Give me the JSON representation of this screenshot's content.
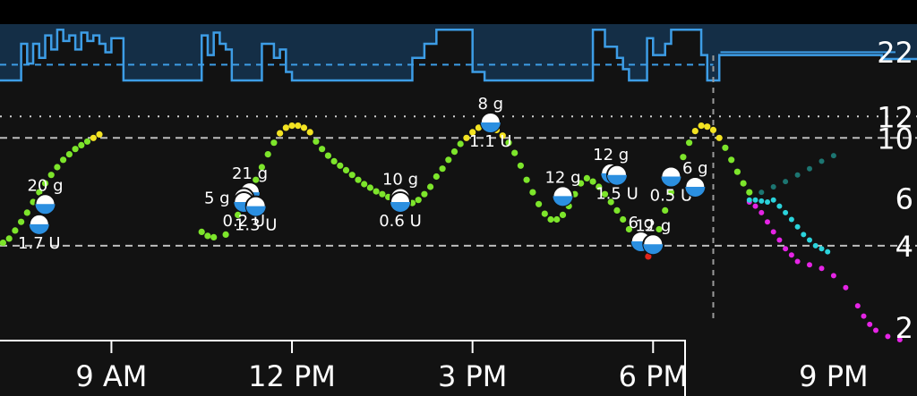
{
  "chart_data": {
    "type": "scatter",
    "title": "",
    "xlabel": "",
    "ylabel": "",
    "x_ticks": [
      "9 AM",
      "12 PM",
      "3 PM",
      "6 PM",
      "9 PM"
    ],
    "x_tick_hours": [
      9,
      12,
      15,
      18,
      21
    ],
    "xlim_hours": [
      7.0,
      22.4
    ],
    "now_hour": 19.0,
    "y_ticks": [
      {
        "label": "2",
        "value": 2
      },
      {
        "label": "4",
        "value": 4
      },
      {
        "label": "6",
        "value": 6
      },
      {
        "label": "10",
        "value": 10
      },
      {
        "label": "12",
        "value": 12
      }
    ],
    "y_scale": "log",
    "ylim": [
      1.8,
      14.0
    ],
    "target_low": 4,
    "target_high": 10,
    "high_dotted": 12,
    "grid": false,
    "colors": {
      "background": "#121212",
      "in_range": "#7de52b",
      "high": "#f3e322",
      "low": "#e0251b",
      "prediction_cob": "#e524e5",
      "prediction_iob": "#2bd3dc",
      "prediction_uam": "#1f8f8a",
      "basal": "#3d9de6",
      "basal_fill": "#15324d",
      "axis": "#ffffff"
    },
    "basal": {
      "scale_label": "22",
      "profile_value": 0.72,
      "steps": [
        [
          7.0,
          0.35
        ],
        [
          7.1,
          1.0
        ],
        [
          7.5,
          0.35
        ],
        [
          7.6,
          0.7
        ],
        [
          7.7,
          0.35
        ],
        [
          7.8,
          0.6
        ],
        [
          7.9,
          0.2
        ],
        [
          8.0,
          0.45
        ],
        [
          8.1,
          0.1
        ],
        [
          8.2,
          0.3
        ],
        [
          8.3,
          0.2
        ],
        [
          8.4,
          0.45
        ],
        [
          8.5,
          0.15
        ],
        [
          8.6,
          0.3
        ],
        [
          8.7,
          0.2
        ],
        [
          8.8,
          0.35
        ],
        [
          8.9,
          0.5
        ],
        [
          9.0,
          0.25
        ],
        [
          9.2,
          1.0
        ],
        [
          10.5,
          0.2
        ],
        [
          10.6,
          0.55
        ],
        [
          10.7,
          0.15
        ],
        [
          10.8,
          0.35
        ],
        [
          10.9,
          0.45
        ],
        [
          11.0,
          1.0
        ],
        [
          11.5,
          0.35
        ],
        [
          11.7,
          0.6
        ],
        [
          11.8,
          0.45
        ],
        [
          11.9,
          0.85
        ],
        [
          12.0,
          1.0
        ],
        [
          14.0,
          0.6
        ],
        [
          14.2,
          0.35
        ],
        [
          14.4,
          0.1
        ],
        [
          14.8,
          0.1
        ],
        [
          15.0,
          0.85
        ],
        [
          15.2,
          1.0
        ],
        [
          17.0,
          0.1
        ],
        [
          17.2,
          0.4
        ],
        [
          17.4,
          0.6
        ],
        [
          17.5,
          0.8
        ],
        [
          17.6,
          1.0
        ],
        [
          17.9,
          0.25
        ],
        [
          18.0,
          0.55
        ],
        [
          18.2,
          0.35
        ],
        [
          18.3,
          0.1
        ],
        [
          18.8,
          0.55
        ],
        [
          18.9,
          1.0
        ],
        [
          19.1,
          0.55
        ],
        [
          21.8,
          0.62
        ],
        [
          22.4,
          0.62
        ]
      ]
    },
    "bg_points": [
      {
        "t": 7.0,
        "v": 4.1
      },
      {
        "t": 7.1,
        "v": 4.0
      },
      {
        "t": 7.2,
        "v": 4.1
      },
      {
        "t": 7.3,
        "v": 4.25
      },
      {
        "t": 7.4,
        "v": 4.55
      },
      {
        "t": 7.5,
        "v": 4.9
      },
      {
        "t": 7.6,
        "v": 5.3
      },
      {
        "t": 7.7,
        "v": 5.8
      },
      {
        "t": 7.8,
        "v": 6.3
      },
      {
        "t": 7.9,
        "v": 6.8
      },
      {
        "t": 8.0,
        "v": 7.3
      },
      {
        "t": 8.1,
        "v": 7.8
      },
      {
        "t": 8.2,
        "v": 8.3
      },
      {
        "t": 8.3,
        "v": 8.7
      },
      {
        "t": 8.4,
        "v": 9.1
      },
      {
        "t": 8.5,
        "v": 9.4
      },
      {
        "t": 8.6,
        "v": 9.7
      },
      {
        "t": 8.7,
        "v": 10.0
      },
      {
        "t": 8.8,
        "v": 10.3
      },
      {
        "t": 10.5,
        "v": 4.5
      },
      {
        "t": 10.6,
        "v": 4.35
      },
      {
        "t": 10.7,
        "v": 4.3
      },
      {
        "t": 10.9,
        "v": 4.4
      },
      {
        "t": 11.1,
        "v": 5.2
      },
      {
        "t": 11.2,
        "v": 5.7
      },
      {
        "t": 11.3,
        "v": 6.3
      },
      {
        "t": 11.4,
        "v": 7.0
      },
      {
        "t": 11.5,
        "v": 7.8
      },
      {
        "t": 11.6,
        "v": 8.7
      },
      {
        "t": 11.7,
        "v": 9.6
      },
      {
        "t": 11.8,
        "v": 10.4
      },
      {
        "t": 11.9,
        "v": 10.9
      },
      {
        "t": 12.0,
        "v": 11.1
      },
      {
        "t": 12.1,
        "v": 11.1
      },
      {
        "t": 12.2,
        "v": 10.9
      },
      {
        "t": 12.3,
        "v": 10.5
      },
      {
        "t": 12.4,
        "v": 9.7
      },
      {
        "t": 12.5,
        "v": 9.1
      },
      {
        "t": 12.6,
        "v": 8.6
      },
      {
        "t": 12.7,
        "v": 8.2
      },
      {
        "t": 12.8,
        "v": 7.9
      },
      {
        "t": 12.9,
        "v": 7.6
      },
      {
        "t": 13.0,
        "v": 7.3
      },
      {
        "t": 13.1,
        "v": 7.0
      },
      {
        "t": 13.2,
        "v": 6.75
      },
      {
        "t": 13.3,
        "v": 6.55
      },
      {
        "t": 13.4,
        "v": 6.35
      },
      {
        "t": 13.5,
        "v": 6.2
      },
      {
        "t": 13.6,
        "v": 6.05
      },
      {
        "t": 13.7,
        "v": 5.9
      },
      {
        "t": 13.8,
        "v": 5.8
      },
      {
        "t": 13.9,
        "v": 5.75
      },
      {
        "t": 14.0,
        "v": 5.75
      },
      {
        "t": 14.1,
        "v": 5.9
      },
      {
        "t": 14.2,
        "v": 6.2
      },
      {
        "t": 14.3,
        "v": 6.6
      },
      {
        "t": 14.4,
        "v": 7.2
      },
      {
        "t": 14.5,
        "v": 7.7
      },
      {
        "t": 14.6,
        "v": 8.3
      },
      {
        "t": 14.7,
        "v": 8.9
      },
      {
        "t": 14.8,
        "v": 9.5
      },
      {
        "t": 14.9,
        "v": 10.0
      },
      {
        "t": 15.0,
        "v": 10.5
      },
      {
        "t": 15.1,
        "v": 10.9
      },
      {
        "t": 15.2,
        "v": 11.1
      },
      {
        "t": 15.3,
        "v": 11.0
      },
      {
        "t": 15.4,
        "v": 10.7
      },
      {
        "t": 15.5,
        "v": 10.2
      },
      {
        "t": 15.6,
        "v": 9.6
      },
      {
        "t": 15.7,
        "v": 8.8
      },
      {
        "t": 15.8,
        "v": 7.9
      },
      {
        "t": 15.9,
        "v": 7.0
      },
      {
        "t": 16.0,
        "v": 6.3
      },
      {
        "t": 16.1,
        "v": 5.7
      },
      {
        "t": 16.2,
        "v": 5.25
      },
      {
        "t": 16.3,
        "v": 5.0
      },
      {
        "t": 16.4,
        "v": 5.0
      },
      {
        "t": 16.5,
        "v": 5.2
      },
      {
        "t": 16.6,
        "v": 5.6
      },
      {
        "t": 16.7,
        "v": 6.2
      },
      {
        "t": 16.8,
        "v": 6.8
      },
      {
        "t": 16.9,
        "v": 7.1
      },
      {
        "t": 17.0,
        "v": 6.9
      },
      {
        "t": 17.1,
        "v": 6.6
      },
      {
        "t": 17.2,
        "v": 6.2
      },
      {
        "t": 17.3,
        "v": 5.8
      },
      {
        "t": 17.4,
        "v": 5.4
      },
      {
        "t": 17.5,
        "v": 5.0
      },
      {
        "t": 17.6,
        "v": 4.6
      },
      {
        "t": 17.7,
        "v": 4.3
      },
      {
        "t": 17.8,
        "v": 4.05
      },
      {
        "t": 17.9,
        "v": 3.9
      },
      {
        "t": 18.0,
        "v": 4.1
      },
      {
        "t": 18.1,
        "v": 4.6
      },
      {
        "t": 18.2,
        "v": 5.4
      },
      {
        "t": 18.3,
        "v": 6.3
      },
      {
        "t": 18.4,
        "v": 7.3
      },
      {
        "t": 18.5,
        "v": 8.5
      },
      {
        "t": 18.6,
        "v": 9.6
      },
      {
        "t": 18.7,
        "v": 10.6
      },
      {
        "t": 18.8,
        "v": 11.1
      },
      {
        "t": 18.9,
        "v": 11.0
      },
      {
        "t": 19.0,
        "v": 10.7
      },
      {
        "t": 19.1,
        "v": 10.0
      },
      {
        "t": 19.2,
        "v": 9.2
      },
      {
        "t": 19.3,
        "v": 8.3
      },
      {
        "t": 19.4,
        "v": 7.5
      },
      {
        "t": 19.5,
        "v": 6.8
      },
      {
        "t": 19.6,
        "v": 6.3
      }
    ],
    "predictions": [
      {
        "kind": "cob",
        "points": [
          [
            19.6,
            5.8
          ],
          [
            19.7,
            5.6
          ],
          [
            19.8,
            5.3
          ],
          [
            19.9,
            4.9
          ],
          [
            20.0,
            4.5
          ],
          [
            20.1,
            4.2
          ],
          [
            20.2,
            3.9
          ],
          [
            20.3,
            3.7
          ],
          [
            20.4,
            3.5
          ],
          [
            20.6,
            3.4
          ],
          [
            20.8,
            3.3
          ],
          [
            21.0,
            3.1
          ],
          [
            21.2,
            2.8
          ],
          [
            21.4,
            2.4
          ],
          [
            21.5,
            2.2
          ],
          [
            21.6,
            2.05
          ],
          [
            21.7,
            1.95
          ],
          [
            21.9,
            1.85
          ],
          [
            22.1,
            1.8
          ]
        ]
      },
      {
        "kind": "iob",
        "points": [
          [
            19.6,
            5.9
          ],
          [
            19.7,
            5.9
          ],
          [
            19.8,
            5.85
          ],
          [
            19.9,
            5.8
          ],
          [
            20.0,
            5.9
          ],
          [
            20.1,
            5.6
          ],
          [
            20.2,
            5.3
          ],
          [
            20.3,
            5.0
          ],
          [
            20.4,
            4.7
          ],
          [
            20.5,
            4.4
          ],
          [
            20.6,
            4.2
          ],
          [
            20.7,
            4.0
          ],
          [
            20.8,
            3.9
          ],
          [
            20.9,
            3.8
          ]
        ]
      },
      {
        "kind": "uam",
        "points": [
          [
            19.8,
            6.3
          ],
          [
            20.0,
            6.6
          ],
          [
            20.2,
            6.9
          ],
          [
            20.4,
            7.3
          ],
          [
            20.6,
            7.7
          ],
          [
            20.8,
            8.2
          ],
          [
            21.0,
            8.6
          ]
        ]
      }
    ],
    "treatments": [
      {
        "t": 7.9,
        "v": 5.7,
        "label": "20 g",
        "side": "above"
      },
      {
        "t": 7.8,
        "v": 4.8,
        "label": "1.7 U",
        "side": "below"
      },
      {
        "t": 11.3,
        "v": 6.3,
        "label": "21 g",
        "side": "above"
      },
      {
        "t": 11.2,
        "v": 6.0,
        "label": "5 g",
        "side": "left"
      },
      {
        "t": 11.2,
        "v": 5.8,
        "label": "0.2 U",
        "side": "below"
      },
      {
        "t": 11.4,
        "v": 5.6,
        "label": "1.3 U",
        "side": "below"
      },
      {
        "t": 13.8,
        "v": 6.0,
        "label": "10 g",
        "side": "above"
      },
      {
        "t": 13.8,
        "v": 5.8,
        "label": "0.6 U",
        "side": "below"
      },
      {
        "t": 15.3,
        "v": 11.4,
        "label": "8 g",
        "side": "above"
      },
      {
        "t": 15.3,
        "v": 11.4,
        "label": "1.1 U",
        "side": "below"
      },
      {
        "t": 16.5,
        "v": 6.1,
        "label": "12 g",
        "side": "above"
      },
      {
        "t": 17.3,
        "v": 7.4,
        "label": "12 g",
        "side": "above"
      },
      {
        "t": 17.4,
        "v": 7.3,
        "label": "1.5 U",
        "side": "below"
      },
      {
        "t": 18.3,
        "v": 7.2,
        "label": "0.5 U",
        "side": "below"
      },
      {
        "t": 18.7,
        "v": 6.6,
        "label": "6 g",
        "side": "above"
      },
      {
        "t": 17.8,
        "v": 4.15,
        "label": "6 g",
        "side": "above"
      },
      {
        "t": 18.0,
        "v": 4.05,
        "label": "12 g",
        "side": "above"
      }
    ]
  }
}
